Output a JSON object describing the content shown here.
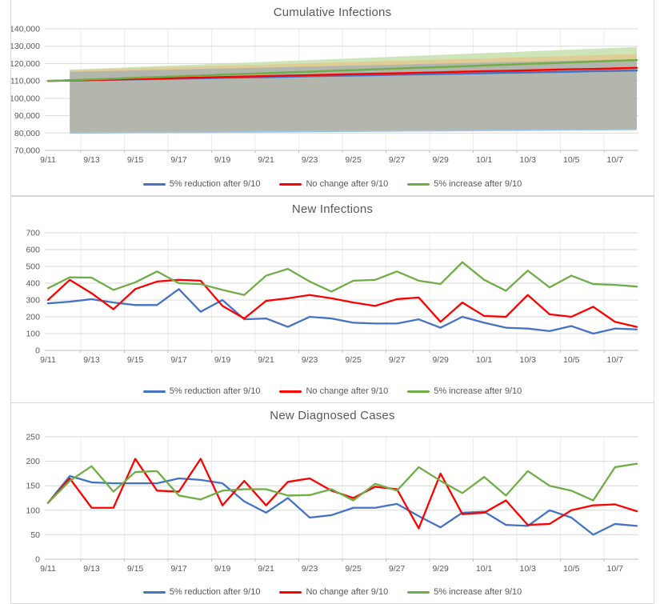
{
  "page": {
    "background": "#ffffff",
    "panel_border_color": "#d9d9d9",
    "grid_color": "#d9d9d9",
    "vgrid_color": "#ededed",
    "axis_line_color": "#bfbfbf",
    "text_color": "#595959"
  },
  "legend": {
    "items": [
      {
        "label": "5% reduction after 9/10",
        "color": "#4472C4"
      },
      {
        "label": "No change after 9/10",
        "color": "#FF0000"
      },
      {
        "label": "5% increase after 9/10",
        "color": "#70AD47"
      }
    ]
  },
  "chart_data": [
    {
      "type": "area",
      "title": "Cumulative Infections",
      "legend_position": "bottom",
      "grid": true,
      "x": [
        "9/11",
        "9/12",
        "9/13",
        "9/14",
        "9/15",
        "9/16",
        "9/17",
        "9/18",
        "9/19",
        "9/20",
        "9/21",
        "9/22",
        "9/23",
        "9/24",
        "9/25",
        "9/26",
        "9/27",
        "9/28",
        "9/29",
        "9/30",
        "10/1",
        "10/2",
        "10/3",
        "10/4",
        "10/5",
        "10/6",
        "10/7",
        "10/8"
      ],
      "x_tick_labels": [
        "9/11",
        "9/13",
        "9/15",
        "9/17",
        "9/19",
        "9/21",
        "9/23",
        "9/25",
        "9/27",
        "9/29",
        "10/1",
        "10/3",
        "10/5",
        "10/7"
      ],
      "ylim": [
        70000,
        140000
      ],
      "ystep": 10000,
      "y_format": "comma",
      "series": [
        {
          "name": "5% reduction after 9/10",
          "color": "#4472C4",
          "width": 2.4,
          "values": [
            110000,
            110200,
            110400,
            110700,
            110900,
            111100,
            111300,
            111600,
            111800,
            112000,
            112200,
            112400,
            112700,
            112900,
            113100,
            113300,
            113600,
            113800,
            114000,
            114200,
            114400,
            114700,
            114900,
            115100,
            115300,
            115600,
            115800,
            116000
          ]
        },
        {
          "name": "No change after 9/10",
          "color": "#FF0000",
          "width": 2.4,
          "values": [
            110000,
            110300,
            110600,
            110800,
            111100,
            111400,
            111700,
            111900,
            112200,
            112500,
            112800,
            113100,
            113300,
            113600,
            113900,
            114200,
            114400,
            114700,
            115000,
            115300,
            115600,
            115800,
            116100,
            116400,
            116700,
            116900,
            117200,
            117500
          ]
        },
        {
          "name": "5% increase after 9/10",
          "color": "#70AD47",
          "width": 2.4,
          "values": [
            110000,
            110400,
            110900,
            111300,
            111800,
            112200,
            112700,
            113100,
            113600,
            114000,
            114400,
            114900,
            115300,
            115800,
            116200,
            116700,
            117100,
            117600,
            118000,
            118400,
            118900,
            119300,
            119800,
            120200,
            120700,
            121100,
            121600,
            122000
          ]
        }
      ],
      "bands": [
        {
          "name": "5% increase confidence band",
          "fill": "#c9e2b2",
          "opacity": 0.9,
          "start_index": 1,
          "upper_start": 116500,
          "upper_end": 129500,
          "lower_start": 81500,
          "lower_end": 82500
        },
        {
          "name": "No change confidence band",
          "fill": "#e3c98f",
          "opacity": 0.85,
          "start_index": 1,
          "upper_start": 116200,
          "upper_end": 125500,
          "lower_start": 80800,
          "lower_end": 82300
        },
        {
          "name": "5% reduction confidence band",
          "fill": "#aeb4ae",
          "opacity": 0.92,
          "start_index": 1,
          "upper_start": 115200,
          "upper_end": 122500,
          "lower_start": 80000,
          "lower_end": 82000,
          "bottom_line_color": "#9dc3e6"
        }
      ]
    },
    {
      "type": "line",
      "title": "New Infections",
      "legend_position": "bottom",
      "grid": true,
      "x": [
        "9/11",
        "9/12",
        "9/13",
        "9/14",
        "9/15",
        "9/16",
        "9/17",
        "9/18",
        "9/19",
        "9/20",
        "9/21",
        "9/22",
        "9/23",
        "9/24",
        "9/25",
        "9/26",
        "9/27",
        "9/28",
        "9/29",
        "9/30",
        "10/1",
        "10/2",
        "10/3",
        "10/4",
        "10/5",
        "10/6",
        "10/7",
        "10/8"
      ],
      "x_tick_labels": [
        "9/11",
        "9/13",
        "9/15",
        "9/17",
        "9/19",
        "9/21",
        "9/23",
        "9/25",
        "9/27",
        "9/29",
        "10/1",
        "10/3",
        "10/5",
        "10/7"
      ],
      "ylim": [
        0,
        700
      ],
      "ystep": 100,
      "y_format": "plain",
      "series": [
        {
          "name": "5% reduction after 9/10",
          "color": "#4472C4",
          "width": 2.3,
          "values": [
            280,
            290,
            305,
            285,
            270,
            270,
            365,
            230,
            300,
            185,
            190,
            140,
            200,
            190,
            165,
            160,
            160,
            185,
            135,
            200,
            165,
            135,
            130,
            115,
            145,
            100,
            130,
            125
          ]
        },
        {
          "name": "No change after 9/10",
          "color": "#FF0000",
          "width": 2.3,
          "values": [
            300,
            420,
            340,
            245,
            365,
            410,
            420,
            415,
            265,
            190,
            295,
            310,
            330,
            310,
            285,
            265,
            305,
            315,
            170,
            285,
            205,
            200,
            330,
            215,
            200,
            260,
            170,
            140
          ]
        },
        {
          "name": "5% increase after 9/10",
          "color": "#70AD47",
          "width": 2.3,
          "values": [
            370,
            435,
            433,
            360,
            405,
            470,
            400,
            395,
            360,
            330,
            445,
            485,
            410,
            350,
            415,
            420,
            470,
            415,
            395,
            525,
            420,
            355,
            475,
            375,
            445,
            395,
            390,
            380
          ]
        }
      ]
    },
    {
      "type": "line",
      "title": "New Diagnosed Cases",
      "legend_position": "bottom",
      "grid": true,
      "x": [
        "9/11",
        "9/12",
        "9/13",
        "9/14",
        "9/15",
        "9/16",
        "9/17",
        "9/18",
        "9/19",
        "9/20",
        "9/21",
        "9/22",
        "9/23",
        "9/24",
        "9/25",
        "9/26",
        "9/27",
        "9/28",
        "9/29",
        "9/30",
        "10/1",
        "10/2",
        "10/3",
        "10/4",
        "10/5",
        "10/6",
        "10/7",
        "10/8"
      ],
      "x_tick_labels": [
        "9/11",
        "9/13",
        "9/15",
        "9/17",
        "9/19",
        "9/21",
        "9/23",
        "9/25",
        "9/27",
        "9/29",
        "10/1",
        "10/3",
        "10/5",
        "10/7"
      ],
      "ylim": [
        0,
        250
      ],
      "ystep": 50,
      "y_format": "plain",
      "series": [
        {
          "name": "5% reduction after 9/10",
          "color": "#4472C4",
          "width": 2.3,
          "values": [
            115,
            170,
            157,
            155,
            155,
            155,
            165,
            162,
            155,
            118,
            95,
            125,
            85,
            90,
            105,
            105,
            113,
            88,
            65,
            95,
            97,
            70,
            68,
            100,
            85,
            50,
            72,
            68
          ]
        },
        {
          "name": "No change after 9/10",
          "color": "#FF0000",
          "width": 2.3,
          "values": [
            115,
            165,
            105,
            105,
            205,
            140,
            138,
            205,
            110,
            160,
            110,
            158,
            165,
            140,
            125,
            148,
            143,
            63,
            175,
            92,
            95,
            120,
            70,
            72,
            100,
            110,
            112,
            98
          ]
        },
        {
          "name": "5% increase after 9/10",
          "color": "#70AD47",
          "width": 2.3,
          "values": [
            115,
            160,
            190,
            138,
            178,
            180,
            130,
            122,
            140,
            143,
            143,
            130,
            131,
            143,
            120,
            154,
            140,
            188,
            160,
            135,
            168,
            130,
            180,
            150,
            140,
            120,
            188,
            195
          ]
        }
      ]
    }
  ]
}
